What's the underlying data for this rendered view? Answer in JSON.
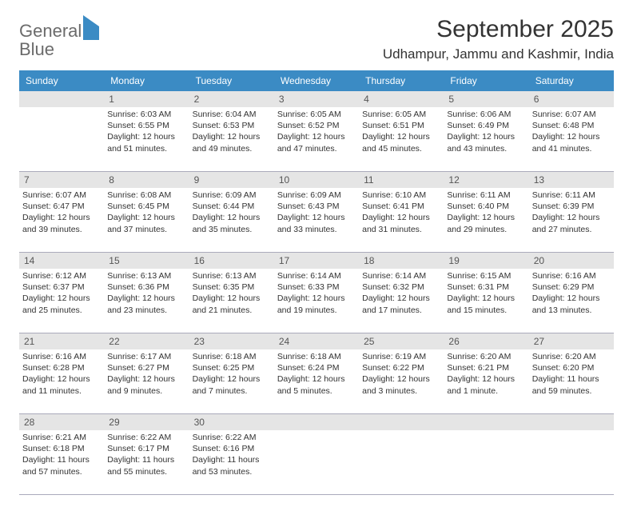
{
  "logo": {
    "word1": "General",
    "word2": "Blue"
  },
  "title": "September 2025",
  "location": "Udhampur, Jammu and Kashmir, India",
  "colors": {
    "header_bg": "#3b8bc4",
    "header_text": "#ffffff",
    "daynum_bg": "#e5e5e5",
    "text": "#333333",
    "logo_gray": "#6b6b6b",
    "logo_blue": "#3b8bc4"
  },
  "day_names": [
    "Sunday",
    "Monday",
    "Tuesday",
    "Wednesday",
    "Thursday",
    "Friday",
    "Saturday"
  ],
  "weeks": [
    [
      {
        "n": "",
        "sunrise": "",
        "sunset": "",
        "daylight1": "",
        "daylight2": ""
      },
      {
        "n": "1",
        "sunrise": "Sunrise: 6:03 AM",
        "sunset": "Sunset: 6:55 PM",
        "daylight1": "Daylight: 12 hours",
        "daylight2": "and 51 minutes."
      },
      {
        "n": "2",
        "sunrise": "Sunrise: 6:04 AM",
        "sunset": "Sunset: 6:53 PM",
        "daylight1": "Daylight: 12 hours",
        "daylight2": "and 49 minutes."
      },
      {
        "n": "3",
        "sunrise": "Sunrise: 6:05 AM",
        "sunset": "Sunset: 6:52 PM",
        "daylight1": "Daylight: 12 hours",
        "daylight2": "and 47 minutes."
      },
      {
        "n": "4",
        "sunrise": "Sunrise: 6:05 AM",
        "sunset": "Sunset: 6:51 PM",
        "daylight1": "Daylight: 12 hours",
        "daylight2": "and 45 minutes."
      },
      {
        "n": "5",
        "sunrise": "Sunrise: 6:06 AM",
        "sunset": "Sunset: 6:49 PM",
        "daylight1": "Daylight: 12 hours",
        "daylight2": "and 43 minutes."
      },
      {
        "n": "6",
        "sunrise": "Sunrise: 6:07 AM",
        "sunset": "Sunset: 6:48 PM",
        "daylight1": "Daylight: 12 hours",
        "daylight2": "and 41 minutes."
      }
    ],
    [
      {
        "n": "7",
        "sunrise": "Sunrise: 6:07 AM",
        "sunset": "Sunset: 6:47 PM",
        "daylight1": "Daylight: 12 hours",
        "daylight2": "and 39 minutes."
      },
      {
        "n": "8",
        "sunrise": "Sunrise: 6:08 AM",
        "sunset": "Sunset: 6:45 PM",
        "daylight1": "Daylight: 12 hours",
        "daylight2": "and 37 minutes."
      },
      {
        "n": "9",
        "sunrise": "Sunrise: 6:09 AM",
        "sunset": "Sunset: 6:44 PM",
        "daylight1": "Daylight: 12 hours",
        "daylight2": "and 35 minutes."
      },
      {
        "n": "10",
        "sunrise": "Sunrise: 6:09 AM",
        "sunset": "Sunset: 6:43 PM",
        "daylight1": "Daylight: 12 hours",
        "daylight2": "and 33 minutes."
      },
      {
        "n": "11",
        "sunrise": "Sunrise: 6:10 AM",
        "sunset": "Sunset: 6:41 PM",
        "daylight1": "Daylight: 12 hours",
        "daylight2": "and 31 minutes."
      },
      {
        "n": "12",
        "sunrise": "Sunrise: 6:11 AM",
        "sunset": "Sunset: 6:40 PM",
        "daylight1": "Daylight: 12 hours",
        "daylight2": "and 29 minutes."
      },
      {
        "n": "13",
        "sunrise": "Sunrise: 6:11 AM",
        "sunset": "Sunset: 6:39 PM",
        "daylight1": "Daylight: 12 hours",
        "daylight2": "and 27 minutes."
      }
    ],
    [
      {
        "n": "14",
        "sunrise": "Sunrise: 6:12 AM",
        "sunset": "Sunset: 6:37 PM",
        "daylight1": "Daylight: 12 hours",
        "daylight2": "and 25 minutes."
      },
      {
        "n": "15",
        "sunrise": "Sunrise: 6:13 AM",
        "sunset": "Sunset: 6:36 PM",
        "daylight1": "Daylight: 12 hours",
        "daylight2": "and 23 minutes."
      },
      {
        "n": "16",
        "sunrise": "Sunrise: 6:13 AM",
        "sunset": "Sunset: 6:35 PM",
        "daylight1": "Daylight: 12 hours",
        "daylight2": "and 21 minutes."
      },
      {
        "n": "17",
        "sunrise": "Sunrise: 6:14 AM",
        "sunset": "Sunset: 6:33 PM",
        "daylight1": "Daylight: 12 hours",
        "daylight2": "and 19 minutes."
      },
      {
        "n": "18",
        "sunrise": "Sunrise: 6:14 AM",
        "sunset": "Sunset: 6:32 PM",
        "daylight1": "Daylight: 12 hours",
        "daylight2": "and 17 minutes."
      },
      {
        "n": "19",
        "sunrise": "Sunrise: 6:15 AM",
        "sunset": "Sunset: 6:31 PM",
        "daylight1": "Daylight: 12 hours",
        "daylight2": "and 15 minutes."
      },
      {
        "n": "20",
        "sunrise": "Sunrise: 6:16 AM",
        "sunset": "Sunset: 6:29 PM",
        "daylight1": "Daylight: 12 hours",
        "daylight2": "and 13 minutes."
      }
    ],
    [
      {
        "n": "21",
        "sunrise": "Sunrise: 6:16 AM",
        "sunset": "Sunset: 6:28 PM",
        "daylight1": "Daylight: 12 hours",
        "daylight2": "and 11 minutes."
      },
      {
        "n": "22",
        "sunrise": "Sunrise: 6:17 AM",
        "sunset": "Sunset: 6:27 PM",
        "daylight1": "Daylight: 12 hours",
        "daylight2": "and 9 minutes."
      },
      {
        "n": "23",
        "sunrise": "Sunrise: 6:18 AM",
        "sunset": "Sunset: 6:25 PM",
        "daylight1": "Daylight: 12 hours",
        "daylight2": "and 7 minutes."
      },
      {
        "n": "24",
        "sunrise": "Sunrise: 6:18 AM",
        "sunset": "Sunset: 6:24 PM",
        "daylight1": "Daylight: 12 hours",
        "daylight2": "and 5 minutes."
      },
      {
        "n": "25",
        "sunrise": "Sunrise: 6:19 AM",
        "sunset": "Sunset: 6:22 PM",
        "daylight1": "Daylight: 12 hours",
        "daylight2": "and 3 minutes."
      },
      {
        "n": "26",
        "sunrise": "Sunrise: 6:20 AM",
        "sunset": "Sunset: 6:21 PM",
        "daylight1": "Daylight: 12 hours",
        "daylight2": "and 1 minute."
      },
      {
        "n": "27",
        "sunrise": "Sunrise: 6:20 AM",
        "sunset": "Sunset: 6:20 PM",
        "daylight1": "Daylight: 11 hours",
        "daylight2": "and 59 minutes."
      }
    ],
    [
      {
        "n": "28",
        "sunrise": "Sunrise: 6:21 AM",
        "sunset": "Sunset: 6:18 PM",
        "daylight1": "Daylight: 11 hours",
        "daylight2": "and 57 minutes."
      },
      {
        "n": "29",
        "sunrise": "Sunrise: 6:22 AM",
        "sunset": "Sunset: 6:17 PM",
        "daylight1": "Daylight: 11 hours",
        "daylight2": "and 55 minutes."
      },
      {
        "n": "30",
        "sunrise": "Sunrise: 6:22 AM",
        "sunset": "Sunset: 6:16 PM",
        "daylight1": "Daylight: 11 hours",
        "daylight2": "and 53 minutes."
      },
      {
        "n": "",
        "sunrise": "",
        "sunset": "",
        "daylight1": "",
        "daylight2": ""
      },
      {
        "n": "",
        "sunrise": "",
        "sunset": "",
        "daylight1": "",
        "daylight2": ""
      },
      {
        "n": "",
        "sunrise": "",
        "sunset": "",
        "daylight1": "",
        "daylight2": ""
      },
      {
        "n": "",
        "sunrise": "",
        "sunset": "",
        "daylight1": "",
        "daylight2": ""
      }
    ]
  ]
}
